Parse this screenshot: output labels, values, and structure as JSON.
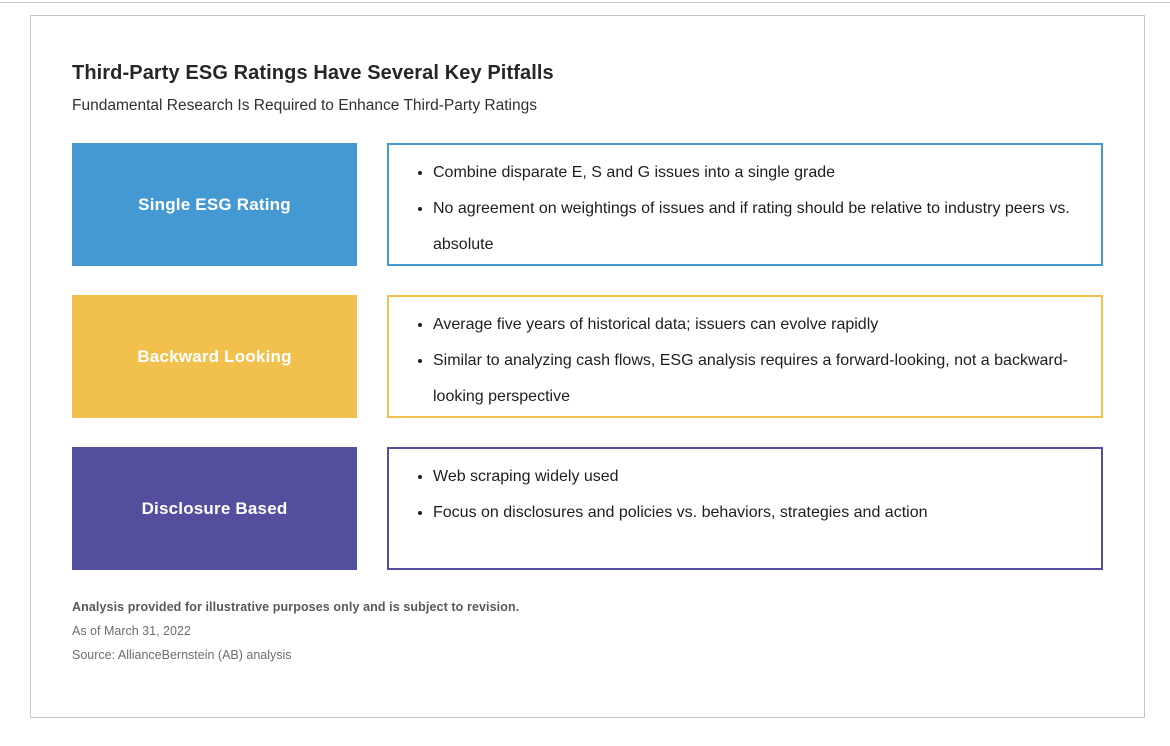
{
  "card": {
    "title": "Third-Party ESG Ratings Have Several Key Pitfalls",
    "subtitle": "Fundamental Research Is Required to Enhance Third-Party Ratings"
  },
  "rows": [
    {
      "label": "Single ESG Rating",
      "color": "#4599D3",
      "bullets": [
        "Combine disparate E, S and G issues into a single grade",
        "No agreement on weightings of issues and if rating should be relative to industry peers vs. absolute"
      ]
    },
    {
      "label": "Backward Looking",
      "color": "#F2C04D",
      "bullets": [
        "Average five years of historical data; issuers can evolve rapidly",
        "Similar to analyzing cash flows, ESG analysis requires a forward-looking, not a backward-looking perspective"
      ]
    },
    {
      "label": "Disclosure Based",
      "color": "#544E9E",
      "bullets": [
        "Web scraping widely used",
        "Focus on disclosures and policies vs. behaviors, strategies and action"
      ]
    }
  ],
  "footnotes": {
    "disclaimer": "Analysis provided for illustrative purposes only and is subject to revision.",
    "as_of": "As of March 31, 2022",
    "source": "Source: AllianceBernstein (AB) analysis"
  }
}
